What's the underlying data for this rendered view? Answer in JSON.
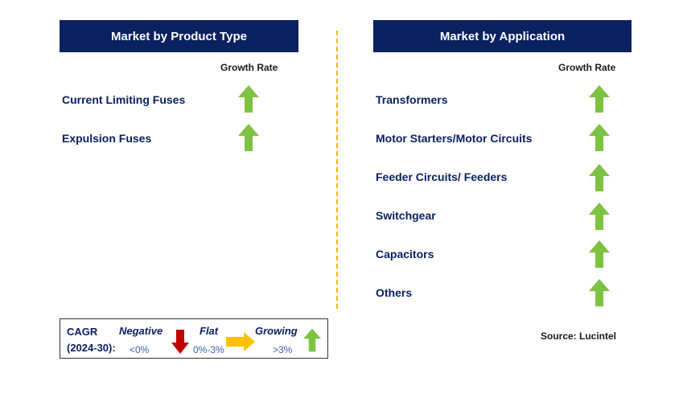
{
  "left": {
    "title": "Market by Product Type",
    "growth_label": "Growth Rate",
    "items": [
      {
        "label": "Current Limiting Fuses",
        "trend": "growing"
      },
      {
        "label": "Expulsion Fuses",
        "trend": "growing"
      }
    ]
  },
  "right": {
    "title": "Market by Application",
    "growth_label": "Growth Rate",
    "items": [
      {
        "label": "Transformers",
        "trend": "growing"
      },
      {
        "label": "Motor Starters/Motor Circuits",
        "trend": "growing"
      },
      {
        "label": "Feeder Circuits/ Feeders",
        "trend": "growing"
      },
      {
        "label": "Switchgear",
        "trend": "growing"
      },
      {
        "label": "Capacitors",
        "trend": "growing"
      },
      {
        "label": "Others",
        "trend": "growing"
      }
    ]
  },
  "legend": {
    "cagr_label": "CAGR",
    "period": "(2024-30):",
    "negative": {
      "label": "Negative",
      "value": "<0%"
    },
    "flat": {
      "label": "Flat",
      "value": "0%-3%"
    },
    "growing": {
      "label": "Growing",
      "value": ">3%"
    }
  },
  "source": "Source: Lucintel",
  "colors": {
    "header_bg": "#0b2160",
    "growing_arrow": "#7dc242",
    "negative_arrow": "#c00000",
    "flat_arrow": "#ffc000",
    "divider": "#f5b21b"
  },
  "icons": {
    "growing": "up-arrow-icon",
    "negative": "down-arrow-icon",
    "flat": "right-arrow-icon"
  }
}
